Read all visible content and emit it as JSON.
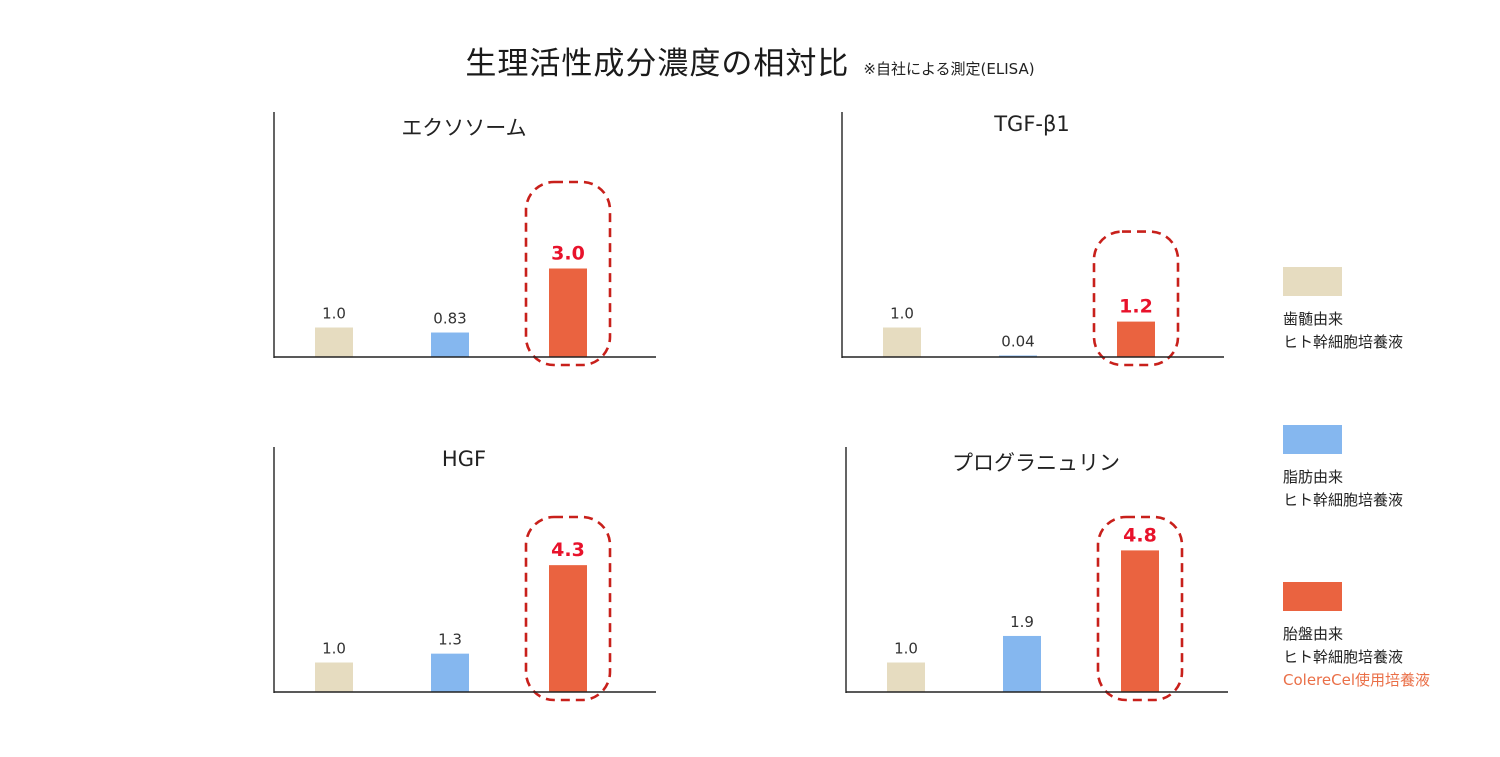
{
  "title": "生理活性成分濃度の相対比",
  "note": "※自社による測定(ELISA)",
  "colors": {
    "dental_pulp": "#e6dcc0",
    "adipose": "#85b7ef",
    "placenta": "#ea6340",
    "highlight_text": "#e8122b",
    "highlight_border": "#c8201b",
    "legend_note": "#ea6f47"
  },
  "legend": [
    {
      "line1": "歯髄由来",
      "line2": "ヒト幹細胞培養液",
      "note": ""
    },
    {
      "line1": "脂肪由来",
      "line2": "ヒト幹細胞培養液",
      "note": ""
    },
    {
      "line1": "胎盤由来",
      "line2": "ヒト幹細胞培養液",
      "note": "ColereCel使用培養液"
    }
  ],
  "chart_data": [
    {
      "type": "bar",
      "title": "エクソソーム",
      "categories": [
        "歯髄由来",
        "脂肪由来",
        "胎盤由来"
      ],
      "values": [
        1.0,
        0.83,
        3.0
      ],
      "labels": [
        "1.0",
        "0.83",
        "3.0"
      ],
      "highlight_index": 2,
      "ylim": [
        0,
        8
      ]
    },
    {
      "type": "bar",
      "title": "TGF-β1",
      "categories": [
        "歯髄由来",
        "脂肪由来",
        "胎盤由来"
      ],
      "values": [
        1.0,
        0.04,
        1.2
      ],
      "labels": [
        "1.0",
        "0.04",
        "1.2"
      ],
      "highlight_index": 2,
      "ylim": [
        0,
        8
      ]
    },
    {
      "type": "bar",
      "title": "HGF",
      "categories": [
        "歯髄由来",
        "脂肪由来",
        "胎盤由来"
      ],
      "values": [
        1.0,
        1.3,
        4.3
      ],
      "labels": [
        "1.0",
        "1.3",
        "4.3"
      ],
      "highlight_index": 2,
      "ylim": [
        0,
        8
      ]
    },
    {
      "type": "bar",
      "title": "プログラニュリン",
      "categories": [
        "歯髄由来",
        "脂肪由来",
        "胎盤由来"
      ],
      "values": [
        1.0,
        1.9,
        4.8
      ],
      "labels": [
        "1.0",
        "1.9",
        "4.8"
      ],
      "highlight_index": 2,
      "ylim": [
        0,
        8
      ]
    }
  ]
}
